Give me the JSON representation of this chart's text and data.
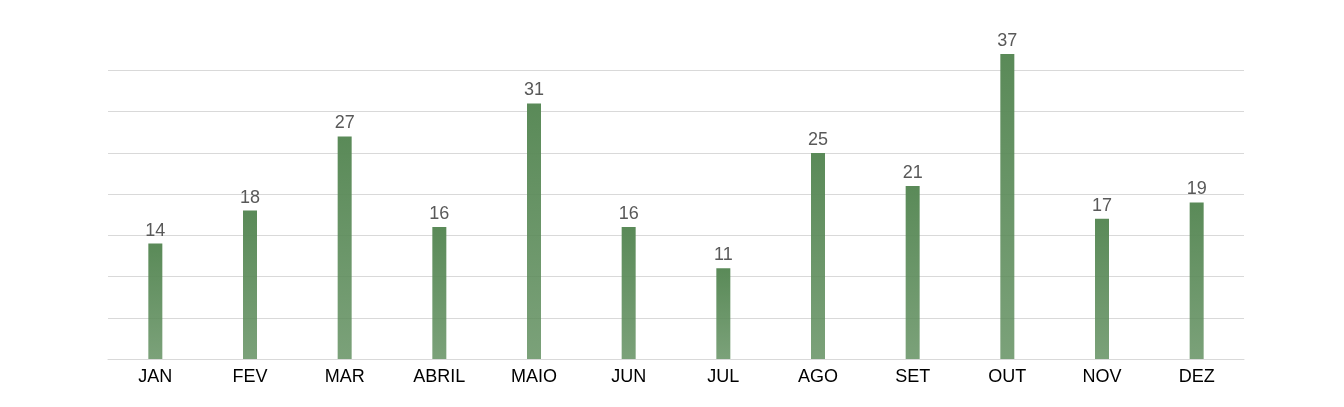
{
  "chart_data": {
    "type": "bar",
    "categories": [
      "JAN",
      "FEV",
      "MAR",
      "ABRIL",
      "MAIO",
      "JUN",
      "JUL",
      "AGO",
      "SET",
      "OUT",
      "NOV",
      "DEZ"
    ],
    "values": [
      14,
      18,
      27,
      16,
      31,
      16,
      11,
      25,
      21,
      37,
      17,
      19
    ],
    "color": "#5a8a58",
    "yticks": [
      {
        "value": 0,
        "label": null
      },
      {
        "value": 5,
        "label": null
      },
      {
        "value": 10,
        "label": null
      },
      {
        "value": 15,
        "label": null
      },
      {
        "value": 20,
        "label": null
      },
      {
        "value": 25,
        "label": null
      },
      {
        "value": 30,
        "label": null
      },
      {
        "value": 35,
        "label": null
      }
    ],
    "grid": "y",
    "tick_labels": "x",
    "data_labels": true
  }
}
